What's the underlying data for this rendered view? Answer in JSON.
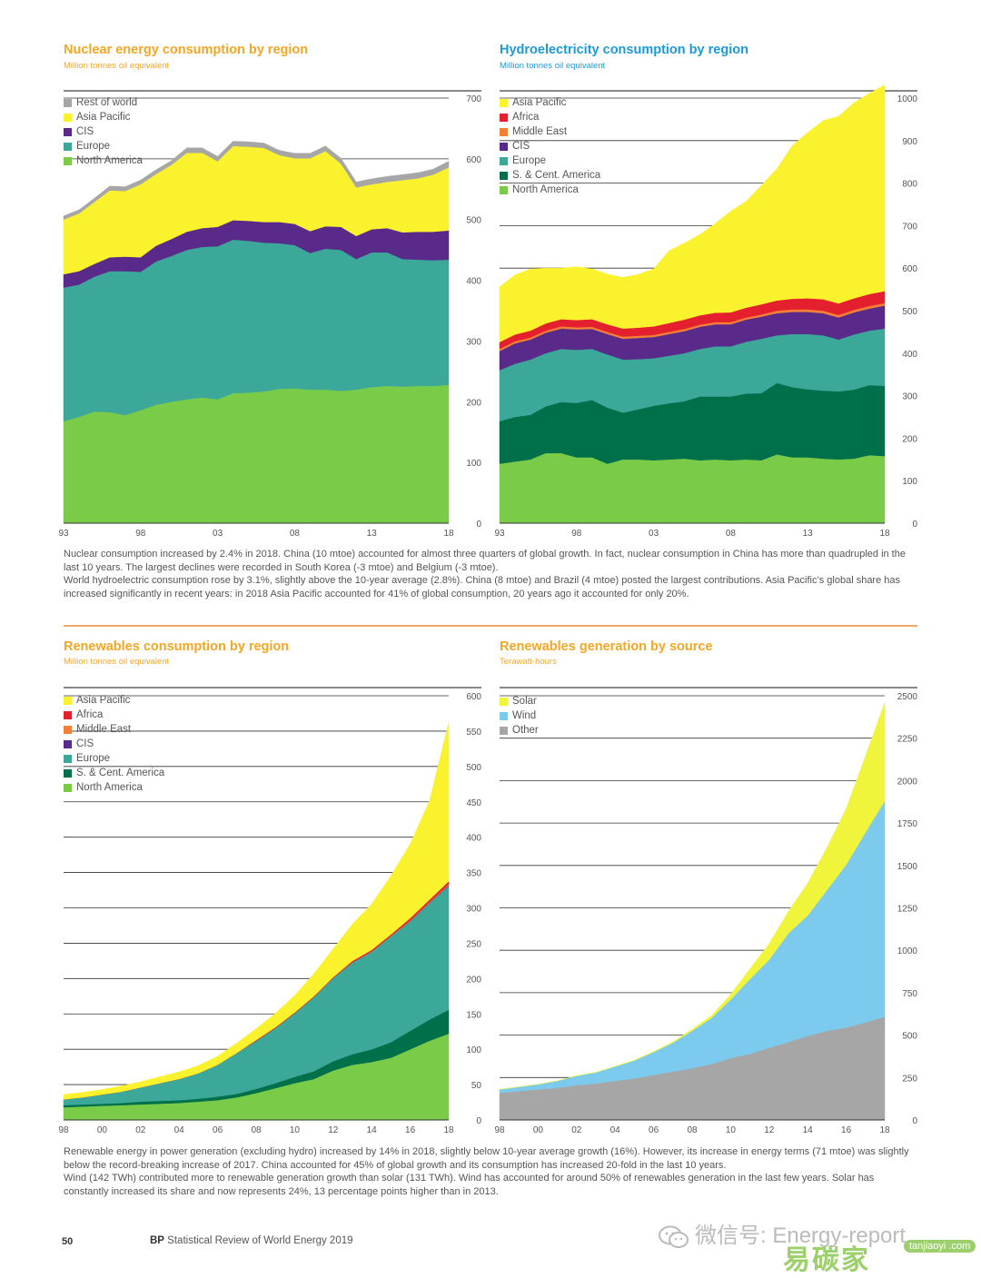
{
  "page": {
    "page_number": "50",
    "brand_bold": "BP",
    "brand_rest": " Statistical Review of World Energy 2019",
    "watermark_wechat": "微信号: Energy-report",
    "watermark_site": "易碳家",
    "watermark_site2": "tanjiaoyi .com"
  },
  "captions": {
    "top_1": "Nuclear consumption increased by 2.4% in 2018. China (10 mtoe) accounted for almost three quarters of global growth. In fact, nuclear consumption in China has more than quadrupled in the last 10 years. The largest declines were recorded in South Korea (-3 mtoe) and Belgium (-3 mtoe).",
    "top_2": "World hydroelectric consumption rose by 3.1%, slightly above the 10-year average (2.8%). China (8 mtoe) and Brazil (4 mtoe) posted the largest contributions. Asia Pacific’s global share has increased significantly in recent years: in 2018 Asia Pacific accounted for 41% of global consumption, 20 years ago it accounted for only 20%.",
    "bottom_1": "Renewable energy in power generation (excluding hydro) increased by 14% in 2018, slightly below 10-year average growth (16%). However, its increase in energy terms (71 mtoe) was slightly below the record-breaking increase of 2017. China accounted for 45% of global growth and its consumption has increased 20-fold in the last 10 years.",
    "bottom_2": "Wind (142 TWh) contributed more to renewable generation growth than solar (131 TWh). Wind has accounted for around 50% of renewables generation in the last few years. Solar has constantly increased its share and now represents 24%, 13 percentage points higher than in 2013."
  },
  "colors": {
    "rest_of_world": "#a6a6a6",
    "asia_pacific": "#fbf22e",
    "africa": "#e5202e",
    "middle_east": "#f47f37",
    "cis": "#5a2a8a",
    "europe": "#3ba89a",
    "sc_america": "#00704a",
    "north_america": "#7acc48",
    "solar": "#f0f53c",
    "wind": "#7ccbee",
    "other": "#a6a6a6"
  },
  "chart_data": [
    {
      "id": "nuclear",
      "type": "area",
      "title": "Nuclear energy consumption by region",
      "subtitle": "Million tonnes oil equivalent",
      "x": [
        1993,
        1994,
        1995,
        1996,
        1997,
        1998,
        1999,
        2000,
        2001,
        2002,
        2003,
        2004,
        2005,
        2006,
        2007,
        2008,
        2009,
        2010,
        2011,
        2012,
        2013,
        2014,
        2015,
        2016,
        2017,
        2018
      ],
      "x_tick_labels": [
        "93",
        "98",
        "03",
        "08",
        "13",
        "18"
      ],
      "x_tick_values": [
        1993,
        1998,
        2003,
        2008,
        2013,
        2018
      ],
      "ylim": [
        0,
        700
      ],
      "y_ticks": [
        0,
        100,
        200,
        300,
        400,
        500,
        600,
        700
      ],
      "series": [
        {
          "name": "North America",
          "color_key": "north_america",
          "values": [
            168,
            175,
            184,
            183,
            178,
            186,
            195,
            200,
            204,
            207,
            204,
            214,
            215,
            217,
            221,
            222,
            220,
            220,
            218,
            220,
            224,
            226,
            225,
            226,
            226,
            228
          ]
        },
        {
          "name": "Europe",
          "color_key": "europe",
          "values": [
            220,
            218,
            222,
            232,
            237,
            228,
            236,
            240,
            246,
            248,
            252,
            253,
            250,
            245,
            240,
            236,
            225,
            232,
            232,
            215,
            222,
            220,
            210,
            208,
            207,
            206
          ]
        },
        {
          "name": "CIS",
          "color_key": "cis",
          "values": [
            22,
            22,
            21,
            23,
            24,
            24,
            26,
            28,
            30,
            31,
            32,
            32,
            33,
            34,
            35,
            35,
            36,
            37,
            38,
            38,
            38,
            40,
            44,
            46,
            47,
            48
          ]
        },
        {
          "name": "Asia Pacific",
          "color_key": "asia_pacific",
          "values": [
            90,
            95,
            102,
            110,
            108,
            120,
            118,
            122,
            130,
            124,
            108,
            122,
            122,
            122,
            110,
            108,
            120,
            124,
            104,
            80,
            74,
            76,
            86,
            88,
            94,
            104
          ]
        },
        {
          "name": "Rest of world",
          "color_key": "rest_of_world",
          "values": [
            6,
            6,
            6,
            7,
            7,
            7,
            7,
            7,
            8,
            8,
            8,
            8,
            8,
            8,
            8,
            8,
            8,
            8,
            9,
            9,
            9,
            9,
            9,
            9,
            9,
            10
          ]
        }
      ],
      "legend": [
        "Rest of world",
        "Asia Pacific",
        "CIS",
        "Europe",
        "North America"
      ],
      "legend_placement": "top-left"
    },
    {
      "id": "hydro",
      "type": "area",
      "title": "Hydroelectricity consumption by region",
      "subtitle": "Million tonnes oil equivalent",
      "x": [
        1993,
        1994,
        1995,
        1996,
        1997,
        1998,
        1999,
        2000,
        2001,
        2002,
        2003,
        2004,
        2005,
        2006,
        2007,
        2008,
        2009,
        2010,
        2011,
        2012,
        2013,
        2014,
        2015,
        2016,
        2017,
        2018
      ],
      "x_tick_labels": [
        "93",
        "98",
        "03",
        "08",
        "13",
        "18"
      ],
      "x_tick_values": [
        1993,
        1998,
        2003,
        2008,
        2013,
        2018
      ],
      "ylim": [
        0,
        1000
      ],
      "y_ticks": [
        0,
        100,
        200,
        300,
        400,
        500,
        600,
        700,
        800,
        900,
        1000
      ],
      "series": [
        {
          "name": "North America",
          "color_key": "north_america",
          "values": [
            140,
            145,
            150,
            165,
            165,
            155,
            155,
            140,
            150,
            150,
            148,
            150,
            152,
            148,
            150,
            148,
            150,
            148,
            162,
            155,
            155,
            152,
            150,
            152,
            160,
            158
          ]
        },
        {
          "name": "S. & Cent. America",
          "color_key": "sc_america",
          "values": [
            100,
            105,
            105,
            110,
            120,
            128,
            135,
            132,
            110,
            118,
            128,
            132,
            135,
            150,
            148,
            150,
            155,
            158,
            168,
            165,
            160,
            160,
            160,
            162,
            165,
            165
          ]
        },
        {
          "name": "Europe",
          "color_key": "europe",
          "values": [
            120,
            125,
            130,
            125,
            125,
            125,
            120,
            125,
            125,
            118,
            112,
            112,
            113,
            112,
            118,
            118,
            122,
            128,
            112,
            125,
            130,
            130,
            122,
            130,
            128,
            135
          ]
        },
        {
          "name": "CIS",
          "color_key": "cis",
          "values": [
            45,
            48,
            47,
            48,
            48,
            48,
            47,
            48,
            49,
            50,
            50,
            51,
            52,
            52,
            52,
            52,
            52,
            52,
            52,
            52,
            52,
            52,
            52,
            52,
            52,
            54
          ]
        },
        {
          "name": "Middle East",
          "color_key": "middle_east",
          "values": [
            5,
            5,
            5,
            5,
            5,
            5,
            5,
            5,
            5,
            5,
            5,
            5,
            5,
            5,
            5,
            5,
            5,
            5,
            6,
            6,
            6,
            6,
            6,
            6,
            6,
            6
          ]
        },
        {
          "name": "Africa",
          "color_key": "africa",
          "values": [
            16,
            16,
            16,
            17,
            17,
            17,
            18,
            18,
            19,
            19,
            20,
            21,
            22,
            22,
            22,
            23,
            23,
            24,
            24,
            25,
            26,
            27,
            27,
            27,
            28,
            28
          ]
        },
        {
          "name": "Asia Pacific",
          "color_key": "asia_pacific",
          "values": [
            130,
            140,
            145,
            130,
            120,
            125,
            118,
            118,
            120,
            125,
            135,
            170,
            180,
            190,
            210,
            238,
            250,
            280,
            310,
            360,
            390,
            420,
            440,
            460,
            472,
            485
          ]
        }
      ],
      "legend": [
        "Asia Pacific",
        "Africa",
        "Middle East",
        "CIS",
        "Europe",
        "S. & Cent. America",
        "North America"
      ],
      "legend_placement": "top-left"
    },
    {
      "id": "renewables",
      "type": "area",
      "title": "Renewables consumption by region",
      "subtitle": "Million tonnes oil equivalent",
      "x": [
        1998,
        1999,
        2000,
        2001,
        2002,
        2003,
        2004,
        2005,
        2006,
        2007,
        2008,
        2009,
        2010,
        2011,
        2012,
        2013,
        2014,
        2015,
        2016,
        2017,
        2018
      ],
      "x_tick_labels": [
        "98",
        "00",
        "02",
        "04",
        "06",
        "08",
        "10",
        "12",
        "14",
        "16",
        "18"
      ],
      "x_tick_values": [
        1998,
        2000,
        2002,
        2004,
        2006,
        2008,
        2010,
        2012,
        2014,
        2016,
        2018
      ],
      "ylim": [
        0,
        600
      ],
      "y_ticks": [
        0,
        50,
        100,
        150,
        200,
        250,
        300,
        350,
        400,
        450,
        500,
        550,
        600
      ],
      "series": [
        {
          "name": "North America",
          "color_key": "north_america",
          "values": [
            18,
            19,
            20,
            21,
            22,
            23,
            24,
            26,
            28,
            32,
            38,
            45,
            52,
            58,
            70,
            78,
            82,
            88,
            100,
            112,
            122
          ]
        },
        {
          "name": "S. & Cent. America",
          "color_key": "sc_america",
          "values": [
            3,
            3,
            3,
            3,
            4,
            4,
            4,
            4,
            5,
            5,
            6,
            7,
            9,
            11,
            13,
            15,
            18,
            22,
            26,
            30,
            34
          ]
        },
        {
          "name": "Europe",
          "color_key": "europe",
          "values": [
            8,
            10,
            13,
            16,
            20,
            25,
            30,
            36,
            45,
            58,
            68,
            78,
            90,
            105,
            118,
            130,
            138,
            150,
            155,
            165,
            175
          ]
        },
        {
          "name": "CIS",
          "color_key": "cis",
          "values": [
            0,
            0,
            0,
            0,
            0,
            0,
            0,
            0,
            0,
            0,
            0,
            0,
            0,
            0,
            0,
            0,
            0,
            0,
            0.5,
            0.5,
            1
          ]
        },
        {
          "name": "Middle East",
          "color_key": "middle_east",
          "values": [
            0,
            0,
            0,
            0,
            0,
            0,
            0,
            0,
            0,
            0,
            0,
            0,
            0,
            0,
            0,
            0,
            0.5,
            0.5,
            1,
            1,
            1.5
          ]
        },
        {
          "name": "Africa",
          "color_key": "africa",
          "values": [
            0,
            0,
            0,
            0,
            0,
            0,
            0,
            0,
            0,
            0,
            1,
            1,
            1,
            1,
            1,
            2,
            2,
            2,
            3,
            3,
            4
          ]
        },
        {
          "name": "Asia Pacific",
          "color_key": "asia_pacific",
          "values": [
            7,
            7,
            7,
            8,
            8,
            9,
            10,
            11,
            12,
            14,
            16,
            20,
            24,
            32,
            40,
            52,
            65,
            83,
            105,
            140,
            225
          ]
        }
      ],
      "legend": [
        "Asia Pacific",
        "Africa",
        "Middle East",
        "CIS",
        "Europe",
        "S. & Cent. America",
        "North America"
      ],
      "legend_placement": "top-left"
    },
    {
      "id": "renewable_gen",
      "type": "area",
      "title": "Renewables generation by source",
      "subtitle": "Terawatt-hours",
      "x": [
        1998,
        1999,
        2000,
        2001,
        2002,
        2003,
        2004,
        2005,
        2006,
        2007,
        2008,
        2009,
        2010,
        2011,
        2012,
        2013,
        2014,
        2015,
        2016,
        2017,
        2018
      ],
      "x_tick_labels": [
        "98",
        "00",
        "02",
        "04",
        "06",
        "08",
        "10",
        "12",
        "14",
        "16",
        "18"
      ],
      "x_tick_values": [
        1998,
        2000,
        2002,
        2004,
        2006,
        2008,
        2010,
        2012,
        2014,
        2016,
        2018
      ],
      "ylim": [
        0,
        2500
      ],
      "y_ticks": [
        0,
        250,
        500,
        750,
        1000,
        1250,
        1500,
        1750,
        2000,
        2250,
        2500
      ],
      "series": [
        {
          "name": "Other",
          "color_key": "other",
          "values": [
            160,
            170,
            180,
            190,
            205,
            215,
            230,
            245,
            265,
            285,
            305,
            330,
            365,
            390,
            425,
            460,
            495,
            525,
            545,
            575,
            610
          ]
        },
        {
          "name": "Wind",
          "color_key": "wind",
          "values": [
            20,
            25,
            30,
            40,
            55,
            65,
            85,
            105,
            135,
            170,
            220,
            270,
            345,
            440,
            520,
            640,
            710,
            830,
            960,
            1120,
            1270
          ]
        },
        {
          "name": "Solar",
          "color_key": "solar",
          "values": [
            0,
            0,
            0,
            0,
            0,
            1,
            1,
            2,
            3,
            5,
            10,
            15,
            30,
            60,
            95,
            130,
            190,
            250,
            330,
            450,
            580
          ]
        }
      ],
      "legend": [
        "Solar",
        "Wind",
        "Other"
      ],
      "legend_placement": "top-left"
    }
  ]
}
